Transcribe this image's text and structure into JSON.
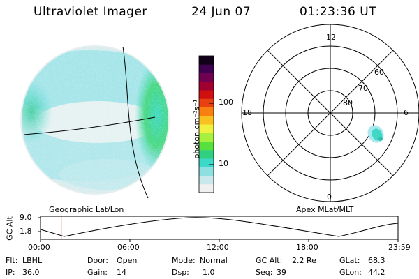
{
  "header": {
    "instrument": "Ultraviolet Imager",
    "date": "24 Jun 07",
    "time": "01:23:36 UT"
  },
  "colorbar": {
    "label": "photon cm⁻²s⁻¹",
    "ticks": [
      "100",
      "10"
    ],
    "scale": "log",
    "colors": [
      "#f0f0f0",
      "#c8e8ec",
      "#8ee0e0",
      "#3cd8c8",
      "#30d080",
      "#58e040",
      "#a8f040",
      "#f0f040",
      "#f8c020",
      "#f88010",
      "#e84010",
      "#d01010",
      "#a00030",
      "#700050",
      "#400050",
      "#100018"
    ]
  },
  "left_panel": {
    "caption": "Geographic Lat/Lon"
  },
  "right_panel": {
    "caption": "Apex MLat/MLT",
    "mlt_labels": {
      "top": "12",
      "bottom": "0",
      "left": "18",
      "right": "6"
    },
    "lat_labels": [
      "60",
      "70",
      "80"
    ]
  },
  "gc_plot": {
    "ylabel": "GC Alt",
    "yticks": [
      "9.0",
      "1.8"
    ],
    "xticks": [
      "00:00",
      "06:00",
      "12:00",
      "18:00",
      "23:59"
    ],
    "marker_time_hours": 1.39,
    "marker_color": "#cc0000"
  },
  "footer": {
    "row1": [
      {
        "label": "Flt:",
        "value": "LBHL"
      },
      {
        "label": "Door:",
        "value": "Open"
      },
      {
        "label": "Mode:",
        "value": "Normal"
      },
      {
        "label": "GC Alt:",
        "value": "2.2 Re"
      },
      {
        "label": "GLat:",
        "value": "68.3"
      }
    ],
    "row2": [
      {
        "label": "IP:",
        "value": "36.0"
      },
      {
        "label": "Gain:",
        "value": "14"
      },
      {
        "label": "Dsp:",
        "value": "1.0"
      },
      {
        "label": "Seq:",
        "value": "39"
      },
      {
        "label": "GLon:",
        "value": "44.2"
      }
    ]
  }
}
